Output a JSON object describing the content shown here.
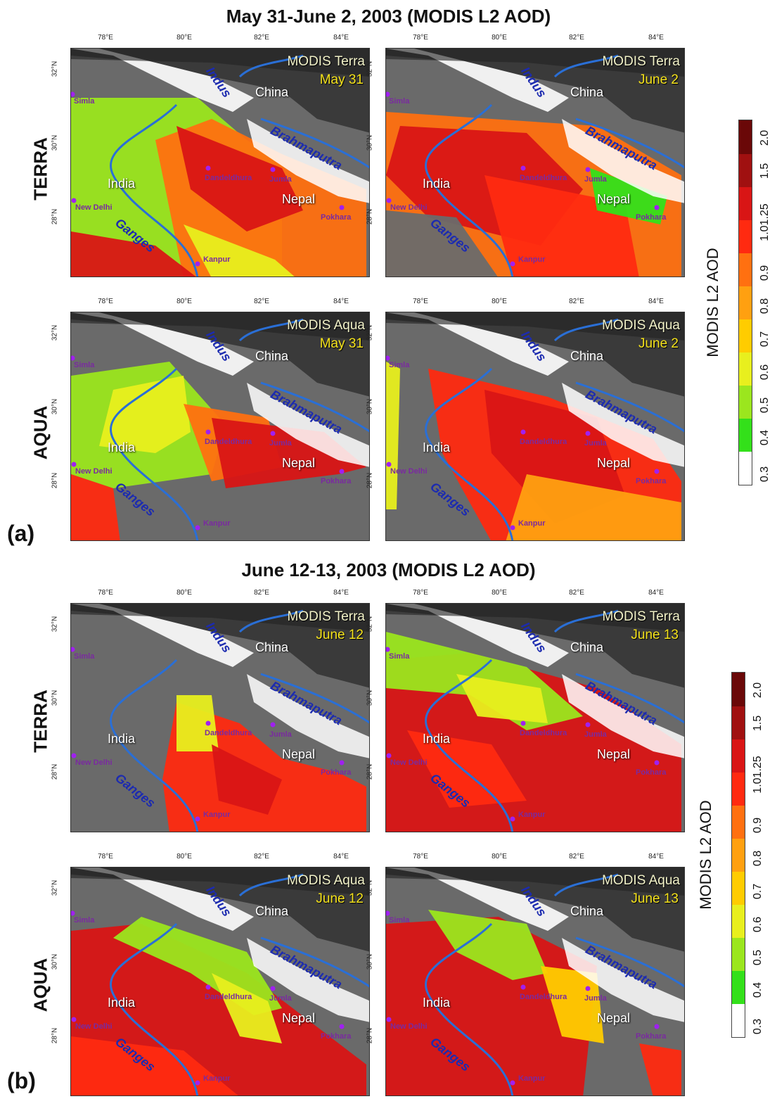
{
  "sections": [
    {
      "title": "May 31-June 2, 2003  (MODIS L2 AOD)",
      "letter": "(a)"
    },
    {
      "title": "June 12-13, 2003  (MODIS L2 AOD)",
      "letter": "(b)"
    }
  ],
  "row_labels": {
    "terra": "TERRA",
    "aqua": "AQUA"
  },
  "lon_ticks": [
    "78°E",
    "80°E",
    "82°E",
    "84°E"
  ],
  "lat_ticks": [
    "32°N",
    "30°N",
    "28°N"
  ],
  "places": {
    "china": "China",
    "india": "India",
    "nepal": "Nepal"
  },
  "rivers": {
    "indus": "Indus",
    "brahmaputra": "Brahmaputra",
    "ganges": "Ganges"
  },
  "cities": [
    "Simla",
    "New Delhi",
    "Dandeldhura",
    "Jumla",
    "Pokhara",
    "Kanpur"
  ],
  "panels": [
    {
      "sat": "MODIS Terra",
      "date": "May 31"
    },
    {
      "sat": "MODIS Terra",
      "date": "June 2"
    },
    {
      "sat": "MODIS Aqua",
      "date": "May 31"
    },
    {
      "sat": "MODIS Aqua",
      "date": "June 2"
    },
    {
      "sat": "MODIS Terra",
      "date": "June 12"
    },
    {
      "sat": "MODIS Terra",
      "date": "June 13"
    },
    {
      "sat": "MODIS Aqua",
      "date": "June 12"
    },
    {
      "sat": "MODIS Aqua",
      "date": "June 13"
    }
  ],
  "colorbar": {
    "title": "MODIS L2 AOD",
    "ticks": [
      "0.3",
      "0.4",
      "0.5",
      "0.6",
      "0.7",
      "0.8",
      "0.9",
      "1.01.25",
      "1.5",
      "2.0"
    ],
    "colors": [
      "#ffffff",
      "#33e01a",
      "#9be61e",
      "#e8ef1e",
      "#ffcc00",
      "#ffa010",
      "#ff7010",
      "#ff2a10",
      "#d91515",
      "#a01010",
      "#6a0808"
    ]
  },
  "colors": {
    "river": "#2a6fd6",
    "river_label": "#1c2bb0",
    "city": "#a020f0",
    "snow": "#ffffff",
    "terrain": "#6a6a6a"
  }
}
